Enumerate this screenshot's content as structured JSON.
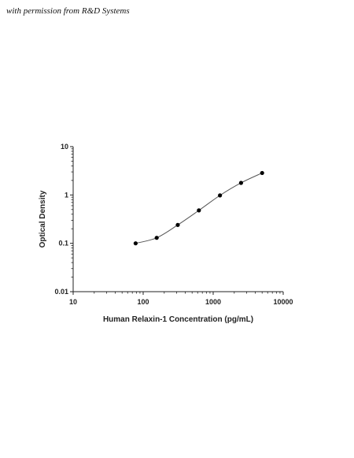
{
  "credit_text": "with permission from R&D Systems",
  "chart_data": {
    "type": "scatter",
    "title": "",
    "xlabel": "Human Relaxin-1 Concentration (pg/mL)",
    "ylabel": "Optical Density",
    "x_scale": "log",
    "y_scale": "log",
    "xlim": [
      10,
      10000
    ],
    "ylim": [
      0.01,
      10
    ],
    "x_ticks": [
      "10",
      "100",
      "1000",
      "10000"
    ],
    "y_ticks": [
      "0.01",
      "0.1",
      "1",
      "10"
    ],
    "grid": false,
    "legend": "none",
    "series": [
      {
        "x": [
          78,
          156,
          312,
          625,
          1250,
          2500,
          5000
        ],
        "y": [
          0.1,
          0.13,
          0.24,
          0.48,
          0.98,
          1.78,
          2.85
        ]
      }
    ],
    "fit_curve": true,
    "marker_color": "#000000",
    "curve_color": "#555555"
  }
}
